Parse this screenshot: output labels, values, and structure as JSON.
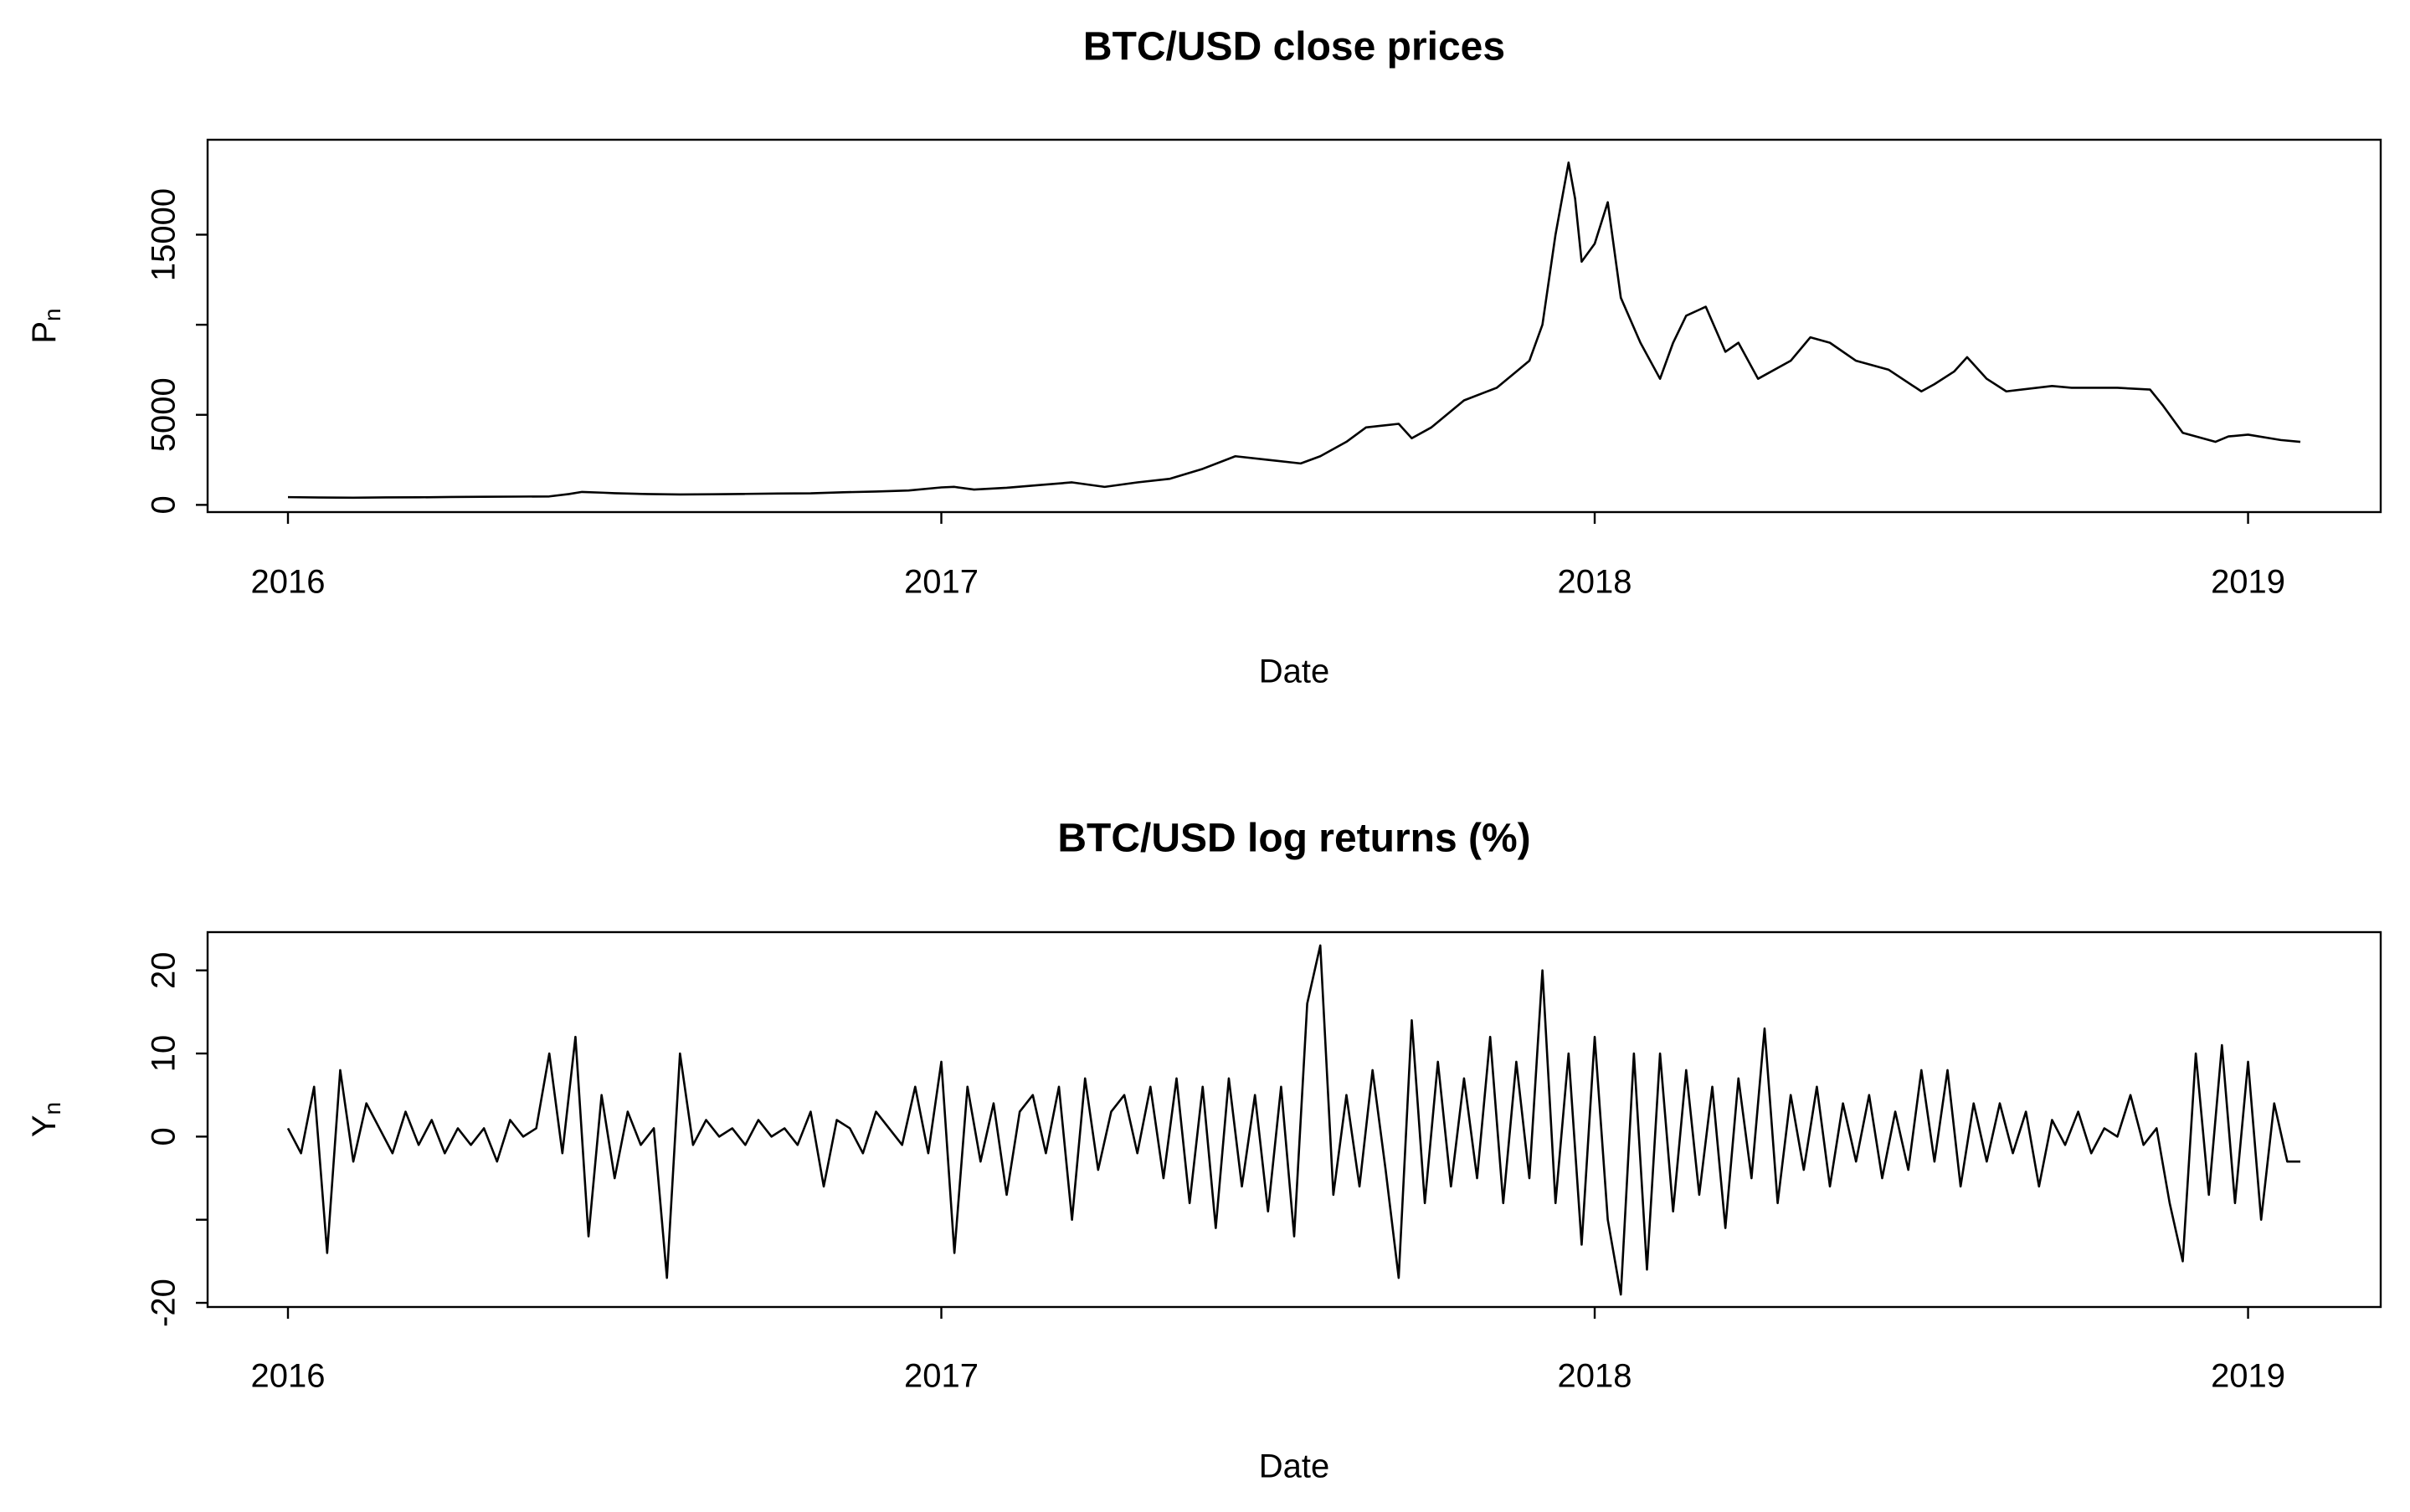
{
  "chart_data": [
    {
      "type": "line",
      "title": "BTC/USD close prices",
      "xlabel": "Date",
      "ylabel": "P",
      "ylabel_sub": "n",
      "color": "#000000",
      "xlim": [
        2015.877,
        2019.203
      ],
      "ylim": [
        -400,
        20270
      ],
      "xticks": [
        2016,
        2017,
        2018,
        2019
      ],
      "yticks": [
        0,
        5000,
        {
          "value": 10000,
          "label": null
        },
        15000
      ],
      "x": [
        2016.0,
        2016.05,
        2016.1,
        2016.15,
        2016.2,
        2016.25,
        2016.3,
        2016.35,
        2016.4,
        2016.43,
        2016.45,
        2016.48,
        2016.5,
        2016.55,
        2016.6,
        2016.65,
        2016.7,
        2016.75,
        2016.8,
        2016.85,
        2016.9,
        2016.95,
        2017.0,
        2017.02,
        2017.05,
        2017.1,
        2017.15,
        2017.2,
        2017.25,
        2017.3,
        2017.35,
        2017.4,
        2017.45,
        2017.5,
        2017.55,
        2017.58,
        2017.62,
        2017.65,
        2017.7,
        2017.72,
        2017.75,
        2017.8,
        2017.85,
        2017.88,
        2017.9,
        2017.92,
        2017.94,
        2017.96,
        2017.97,
        2017.98,
        2018.0,
        2018.02,
        2018.04,
        2018.07,
        2018.1,
        2018.12,
        2018.14,
        2018.17,
        2018.2,
        2018.22,
        2018.25,
        2018.3,
        2018.33,
        2018.36,
        2018.4,
        2018.45,
        2018.5,
        2018.52,
        2018.55,
        2018.57,
        2018.6,
        2018.63,
        2018.7,
        2018.73,
        2018.8,
        2018.85,
        2018.87,
        2018.9,
        2018.95,
        2018.97,
        2019.0,
        2019.05,
        2019.08
      ],
      "values": [
        430,
        410,
        400,
        415,
        420,
        440,
        450,
        460,
        470,
        600,
        720,
        680,
        650,
        600,
        580,
        590,
        610,
        630,
        640,
        700,
        740,
        800,
        970,
        1000,
        850,
        950,
        1100,
        1250,
        1000,
        1250,
        1450,
        2000,
        2700,
        2500,
        2300,
        2700,
        3500,
        4300,
        4500,
        3700,
        4300,
        5800,
        6500,
        7400,
        8000,
        10000,
        15000,
        19000,
        17000,
        13500,
        14500,
        16800,
        11500,
        9000,
        7000,
        9000,
        10500,
        11000,
        8500,
        9000,
        7000,
        8000,
        9300,
        9000,
        8000,
        7500,
        6300,
        6700,
        7400,
        8200,
        7000,
        6300,
        6600,
        6500,
        6500,
        6400,
        5500,
        4000,
        3500,
        3800,
        3900,
        3600,
        3500
      ]
    },
    {
      "type": "line",
      "title": "BTC/USD log returns (%)",
      "xlabel": "Date",
      "ylabel": "Y",
      "ylabel_sub": "n",
      "color": "#000000",
      "xlim": [
        2015.877,
        2019.203
      ],
      "ylim": [
        -20.5,
        24.6
      ],
      "xticks": [
        2016,
        2017,
        2018,
        2019
      ],
      "yticks": [
        -20,
        {
          "value": -10,
          "label": null
        },
        0,
        10,
        20
      ],
      "x": [
        2016.0,
        2016.02,
        2016.04,
        2016.06,
        2016.08,
        2016.1,
        2016.12,
        2016.14,
        2016.16,
        2016.18,
        2016.2,
        2016.22,
        2016.24,
        2016.26,
        2016.28,
        2016.3,
        2016.32,
        2016.34,
        2016.36,
        2016.38,
        2016.4,
        2016.42,
        2016.44,
        2016.46,
        2016.48,
        2016.5,
        2016.52,
        2016.54,
        2016.56,
        2016.58,
        2016.6,
        2016.62,
        2016.64,
        2016.66,
        2016.68,
        2016.7,
        2016.72,
        2016.74,
        2016.76,
        2016.78,
        2016.8,
        2016.82,
        2016.84,
        2016.86,
        2016.88,
        2016.9,
        2016.92,
        2016.94,
        2016.96,
        2016.98,
        2017.0,
        2017.02,
        2017.04,
        2017.06,
        2017.08,
        2017.1,
        2017.12,
        2017.14,
        2017.16,
        2017.18,
        2017.2,
        2017.22,
        2017.24,
        2017.26,
        2017.28,
        2017.3,
        2017.32,
        2017.34,
        2017.36,
        2017.38,
        2017.4,
        2017.42,
        2017.44,
        2017.46,
        2017.48,
        2017.5,
        2017.52,
        2017.54,
        2017.56,
        2017.58,
        2017.6,
        2017.62,
        2017.64,
        2017.66,
        2017.68,
        2017.7,
        2017.72,
        2017.74,
        2017.76,
        2017.78,
        2017.8,
        2017.82,
        2017.84,
        2017.86,
        2017.88,
        2017.9,
        2017.92,
        2017.94,
        2017.96,
        2017.98,
        2018.0,
        2018.02,
        2018.04,
        2018.06,
        2018.08,
        2018.1,
        2018.12,
        2018.14,
        2018.16,
        2018.18,
        2018.2,
        2018.22,
        2018.24,
        2018.26,
        2018.28,
        2018.3,
        2018.32,
        2018.34,
        2018.36,
        2018.38,
        2018.4,
        2018.42,
        2018.44,
        2018.46,
        2018.48,
        2018.5,
        2018.52,
        2018.54,
        2018.56,
        2018.58,
        2018.6,
        2018.62,
        2018.64,
        2018.66,
        2018.68,
        2018.7,
        2018.72,
        2018.74,
        2018.76,
        2018.78,
        2018.8,
        2018.82,
        2018.84,
        2018.86,
        2018.88,
        2018.9,
        2018.92,
        2018.94,
        2018.96,
        2018.98,
        2019.0,
        2019.02,
        2019.04,
        2019.06,
        2019.08
      ],
      "values": [
        1,
        -2,
        6,
        -14,
        8,
        -3,
        4,
        1,
        -2,
        3,
        -1,
        2,
        -2,
        1,
        -1,
        1,
        -3,
        2,
        0,
        1,
        10,
        -2,
        12,
        -12,
        5,
        -5,
        3,
        -1,
        1,
        -17,
        10,
        -1,
        2,
        0,
        1,
        -1,
        2,
        0,
        1,
        -1,
        3,
        -6,
        2,
        1,
        -2,
        3,
        1,
        -1,
        6,
        -2,
        9,
        -14,
        6,
        -3,
        4,
        -7,
        3,
        5,
        -2,
        6,
        -10,
        7,
        -4,
        3,
        5,
        -2,
        6,
        -5,
        7,
        -8,
        6,
        -11,
        7,
        -6,
        5,
        -9,
        6,
        -12,
        16,
        23,
        -7,
        5,
        -6,
        8,
        -4,
        -17,
        14,
        -8,
        9,
        -6,
        7,
        -5,
        12,
        -8,
        9,
        -5,
        20,
        -8,
        10,
        -13,
        12,
        -10,
        -19,
        10,
        -16,
        10,
        -9,
        8,
        -7,
        6,
        -11,
        7,
        -5,
        13,
        -8,
        5,
        -4,
        6,
        -6,
        4,
        -3,
        5,
        -5,
        3,
        -4,
        8,
        -3,
        8,
        -6,
        4,
        -3,
        4,
        -2,
        3,
        -6,
        2,
        -1,
        3,
        -2,
        1,
        0,
        5,
        -1,
        1,
        -8,
        -15,
        10,
        -7,
        11,
        -8,
        9,
        -10,
        4,
        -3,
        -3
      ]
    }
  ]
}
